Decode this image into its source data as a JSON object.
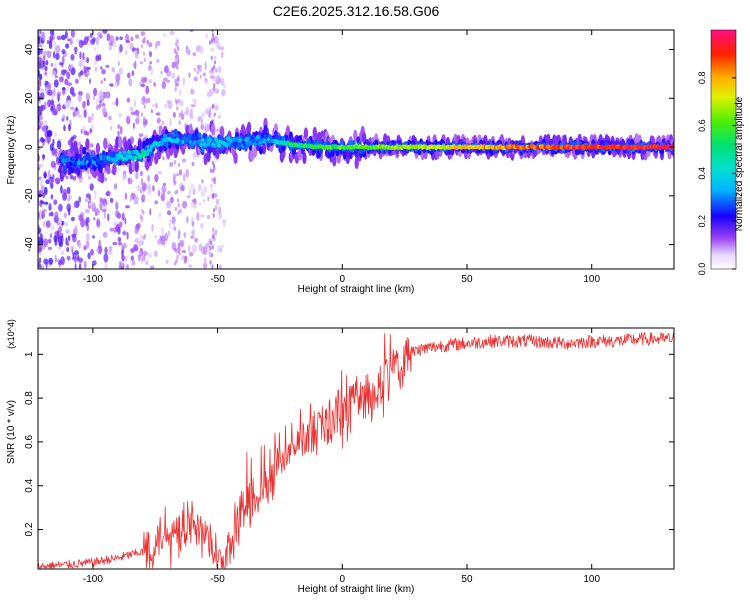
{
  "title": "C2E6.2025.312.16.58.G06",
  "colors": {
    "snr_line": "#ee3030",
    "axis": "#000000",
    "spectrum_background": "#ffffff"
  },
  "chart_data": [
    {
      "type": "heatmap",
      "title": "C2E6.2025.312.16.58.G06",
      "xlabel": "Height of straight line (km)",
      "ylabel": "Frequency (Hz)",
      "xlim": [
        -122,
        133
      ],
      "ylim": [
        -50,
        48
      ],
      "xticks": [
        -100,
        -50,
        0,
        50,
        100
      ],
      "xtick_labels": [
        "-100",
        "-50",
        "0",
        "50",
        "100"
      ],
      "yticks": [
        -40,
        -20,
        0,
        20,
        40
      ],
      "ytick_labels": [
        "-40",
        "-20",
        "0",
        "20",
        "40"
      ],
      "grid": false,
      "colorbar": {
        "label": "Normalized spectral amplitude",
        "range": [
          0,
          1
        ],
        "ticks": [
          0.0,
          0.2,
          0.4,
          0.6,
          0.8
        ],
        "tick_labels": [
          "0.0",
          "0.2",
          "0.4",
          "0.6",
          "0.8"
        ],
        "colormap": "rainbow"
      },
      "ridge": {
        "x": [
          -113,
          -100,
          -90,
          -80,
          -70,
          -60,
          -50,
          -40,
          -30,
          -20,
          -10,
          0,
          10,
          20,
          30,
          50,
          75,
          100,
          133
        ],
        "frequency": [
          -6,
          -6,
          -4,
          -3,
          4,
          2,
          2,
          2,
          3,
          1,
          0,
          0,
          0,
          0,
          0,
          0,
          0,
          0,
          0
        ],
        "amplitude": [
          0.25,
          0.3,
          0.35,
          0.45,
          0.35,
          0.3,
          0.35,
          0.3,
          0.3,
          0.5,
          0.55,
          0.6,
          0.6,
          0.65,
          0.7,
          0.75,
          0.85,
          0.9,
          0.95
        ]
      }
    },
    {
      "type": "line",
      "xlabel": "Height of straight line (km)",
      "ylabel": "SNR (10 * v/v)",
      "y_scale_note": "(x10^4)",
      "xlim": [
        -122,
        133
      ],
      "ylim": [
        0.02,
        1.12
      ],
      "xticks": [
        -100,
        -50,
        0,
        50,
        100
      ],
      "xtick_labels": [
        "-100",
        "-50",
        "0",
        "50",
        "100"
      ],
      "yticks": [
        0.2,
        0.4,
        0.6,
        0.8,
        1.0
      ],
      "ytick_labels": [
        "0.2",
        "0.4",
        "0.6",
        "0.8",
        "1"
      ],
      "grid": false,
      "series": [
        {
          "name": "SNR",
          "x": [
            -122,
            -110,
            -100,
            -90,
            -80,
            -75,
            -70,
            -65,
            -60,
            -55,
            -50,
            -47,
            -45,
            -40,
            -35,
            -30,
            -25,
            -20,
            -15,
            -10,
            -5,
            0,
            5,
            10,
            15,
            20,
            25,
            30,
            40,
            50,
            60,
            75,
            90,
            100,
            110,
            120,
            133
          ],
          "y": [
            0.03,
            0.04,
            0.05,
            0.07,
            0.1,
            0.14,
            0.2,
            0.2,
            0.22,
            0.18,
            0.06,
            0.05,
            0.12,
            0.28,
            0.35,
            0.4,
            0.5,
            0.58,
            0.62,
            0.65,
            0.7,
            0.75,
            0.82,
            0.8,
            0.83,
            0.92,
            0.99,
            1.02,
            1.04,
            1.05,
            1.06,
            1.06,
            1.05,
            1.06,
            1.06,
            1.07,
            1.07
          ]
        }
      ]
    }
  ]
}
